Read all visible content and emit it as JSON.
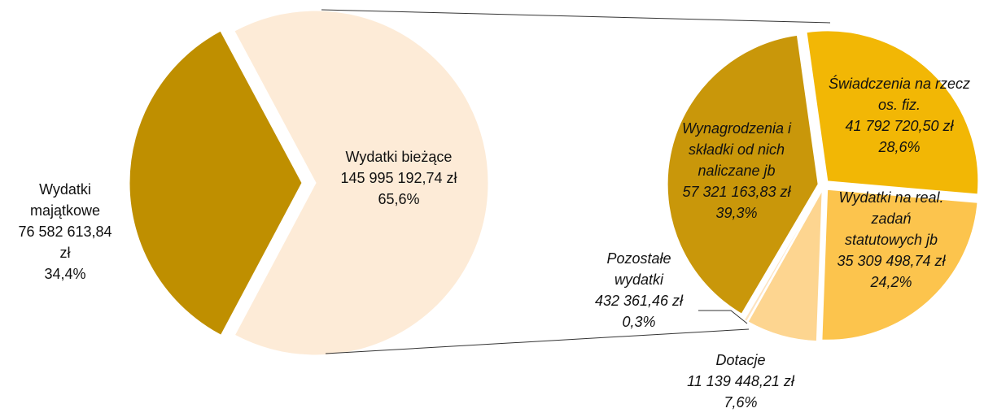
{
  "chart_data": [
    {
      "type": "pie",
      "categories": [
        "Wydatki majątkowe",
        "Wydatki bieżące"
      ],
      "values": [
        34.4,
        65.6
      ],
      "value_labels": [
        "34,4%",
        "65,6%"
      ],
      "amounts": [
        76582613.84,
        145995192.74
      ],
      "amount_labels": [
        "76 582 613,84 zł",
        "145 995 192,74 zł"
      ],
      "colors": [
        "#bf8f00",
        "#fdebd7"
      ]
    },
    {
      "type": "pie",
      "categories": [
        "Świadczenia na rzecz os. fiz.",
        "Wydatki na real. zadań statutowych jb",
        "Dotacje",
        "Pozostałe wydatki",
        "Wynagrodzenia i składki od nich naliczane jb"
      ],
      "values": [
        28.6,
        24.2,
        7.6,
        0.3,
        39.3
      ],
      "value_labels": [
        "28,6%",
        "24,2%",
        "7,6%",
        "0,3%",
        "39,3%"
      ],
      "amounts": [
        41792720.5,
        35309498.74,
        11139448.21,
        432361.46,
        57321163.83
      ],
      "amount_labels": [
        "41 792 720,50 zł",
        "35 309 498,74 zł",
        "11 139 448,21 zł",
        "432 361,46 zł",
        "57 321 163,83 zł"
      ],
      "colors": [
        "#f2b705",
        "#fcc44d",
        "#fdd590",
        "#fde3bf",
        "#c9970a"
      ]
    }
  ]
}
